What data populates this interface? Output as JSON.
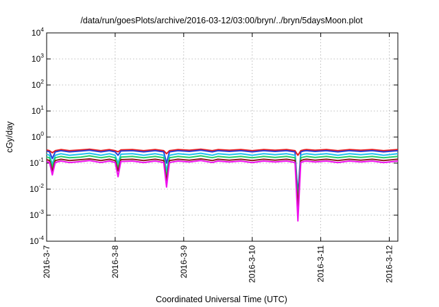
{
  "chart_data": {
    "type": "line",
    "title": "/data/run/goesPlots/archive/2016-03-12/03:00/bryn/../bryn/5daysMoon.plot",
    "xlabel": "Coordinated Universal Time (UTC)",
    "ylabel": "cGy/day",
    "y_scale": "log",
    "ylim": [
      0.0001,
      10000
    ],
    "y_ticks": [
      {
        "base": "10",
        "exp": "-4",
        "value": 0.0001
      },
      {
        "base": "10",
        "exp": "-3",
        "value": 0.001
      },
      {
        "base": "10",
        "exp": "-2",
        "value": 0.01
      },
      {
        "base": "10",
        "exp": "-1",
        "value": 0.1
      },
      {
        "base": "10",
        "exp": "0",
        "value": 1
      },
      {
        "base": "10",
        "exp": "1",
        "value": 10
      },
      {
        "base": "10",
        "exp": "2",
        "value": 100
      },
      {
        "base": "10",
        "exp": "3",
        "value": 1000
      },
      {
        "base": "10",
        "exp": "4",
        "value": 10000
      }
    ],
    "xlim": [
      "2016-03-07 00:00",
      "2016-03-12 03:00"
    ],
    "x_ticks": [
      "2016-3-7",
      "2016-3-8",
      "2016-3-9",
      "2016-3-10",
      "2016-3-11",
      "2016-3-12"
    ],
    "grid": true,
    "legend": "none",
    "x": [
      "2016-03-07 00:00",
      "2016-03-07 01:00",
      "2016-03-07 02:00",
      "2016-03-07 03:00",
      "2016-03-07 05:00",
      "2016-03-07 08:00",
      "2016-03-07 12:00",
      "2016-03-07 15:00",
      "2016-03-07 19:00",
      "2016-03-07 22:00",
      "2016-03-08 00:00",
      "2016-03-08 01:00",
      "2016-03-08 02:00",
      "2016-03-08 06:00",
      "2016-03-08 10:00",
      "2016-03-08 14:00",
      "2016-03-08 17:00",
      "2016-03-08 18:00",
      "2016-03-08 19:00",
      "2016-03-08 22:00",
      "2016-03-09 02:00",
      "2016-03-09 06:00",
      "2016-03-09 10:00",
      "2016-03-09 12:00",
      "2016-03-09 16:00",
      "2016-03-09 20:00",
      "2016-03-10 00:00",
      "2016-03-10 04:00",
      "2016-03-10 08:00",
      "2016-03-10 12:00",
      "2016-03-10 15:00",
      "2016-03-10 16:00",
      "2016-03-10 17:00",
      "2016-03-10 18:00",
      "2016-03-10 19:00",
      "2016-03-10 22:00",
      "2016-03-11 02:00",
      "2016-03-11 06:00",
      "2016-03-11 10:00",
      "2016-03-11 14:00",
      "2016-03-11 18:00",
      "2016-03-11 22:00",
      "2016-03-12 03:00"
    ],
    "series": [
      {
        "color": "#e8161b",
        "values": [
          0.32,
          0.3,
          0.25,
          0.3,
          0.33,
          0.3,
          0.32,
          0.34,
          0.3,
          0.33,
          0.3,
          0.27,
          0.32,
          0.33,
          0.3,
          0.33,
          0.3,
          0.23,
          0.3,
          0.33,
          0.31,
          0.34,
          0.3,
          0.33,
          0.31,
          0.33,
          0.3,
          0.33,
          0.31,
          0.33,
          0.3,
          0.2,
          0.3,
          0.32,
          0.33,
          0.31,
          0.33,
          0.3,
          0.33,
          0.31,
          0.33,
          0.3,
          0.33
        ]
      },
      {
        "color": "#2a3fd6",
        "values": [
          0.29,
          0.27,
          0.15,
          0.27,
          0.3,
          0.27,
          0.29,
          0.31,
          0.27,
          0.3,
          0.27,
          0.2,
          0.29,
          0.3,
          0.27,
          0.3,
          0.27,
          0.1,
          0.27,
          0.3,
          0.28,
          0.31,
          0.27,
          0.3,
          0.28,
          0.3,
          0.27,
          0.3,
          0.28,
          0.3,
          0.27,
          0.006,
          0.27,
          0.29,
          0.3,
          0.28,
          0.3,
          0.27,
          0.3,
          0.28,
          0.3,
          0.27,
          0.3
        ]
      },
      {
        "color": "#1ec0f0",
        "values": [
          0.22,
          0.2,
          0.09,
          0.2,
          0.23,
          0.2,
          0.22,
          0.24,
          0.2,
          0.23,
          0.2,
          0.1,
          0.22,
          0.23,
          0.2,
          0.23,
          0.2,
          0.05,
          0.2,
          0.23,
          0.21,
          0.24,
          0.2,
          0.23,
          0.21,
          0.23,
          0.2,
          0.23,
          0.21,
          0.23,
          0.2,
          0.004,
          0.2,
          0.22,
          0.23,
          0.21,
          0.23,
          0.2,
          0.23,
          0.21,
          0.23,
          0.2,
          0.23
        ]
      },
      {
        "color": "#22cc66",
        "values": [
          0.17,
          0.16,
          0.07,
          0.16,
          0.18,
          0.16,
          0.17,
          0.19,
          0.16,
          0.18,
          0.16,
          0.07,
          0.17,
          0.18,
          0.16,
          0.18,
          0.16,
          0.03,
          0.16,
          0.18,
          0.165,
          0.19,
          0.16,
          0.18,
          0.165,
          0.18,
          0.16,
          0.18,
          0.165,
          0.18,
          0.16,
          0.003,
          0.16,
          0.17,
          0.18,
          0.165,
          0.18,
          0.16,
          0.18,
          0.165,
          0.18,
          0.16,
          0.18
        ]
      },
      {
        "color": "#8b1a1a",
        "values": [
          0.135,
          0.125,
          0.05,
          0.125,
          0.14,
          0.125,
          0.135,
          0.145,
          0.125,
          0.14,
          0.125,
          0.05,
          0.135,
          0.14,
          0.125,
          0.14,
          0.125,
          0.02,
          0.125,
          0.14,
          0.13,
          0.145,
          0.125,
          0.14,
          0.13,
          0.14,
          0.125,
          0.14,
          0.13,
          0.14,
          0.125,
          0.002,
          0.125,
          0.135,
          0.14,
          0.13,
          0.14,
          0.125,
          0.14,
          0.13,
          0.14,
          0.125,
          0.14
        ]
      },
      {
        "color": "#ee10ee",
        "values": [
          0.115,
          0.105,
          0.035,
          0.105,
          0.12,
          0.105,
          0.115,
          0.125,
          0.105,
          0.12,
          0.105,
          0.03,
          0.115,
          0.12,
          0.105,
          0.12,
          0.105,
          0.012,
          0.105,
          0.12,
          0.11,
          0.125,
          0.105,
          0.12,
          0.11,
          0.12,
          0.105,
          0.12,
          0.11,
          0.12,
          0.105,
          0.0006,
          0.105,
          0.115,
          0.12,
          0.11,
          0.12,
          0.105,
          0.12,
          0.11,
          0.12,
          0.105,
          0.12
        ]
      }
    ]
  }
}
